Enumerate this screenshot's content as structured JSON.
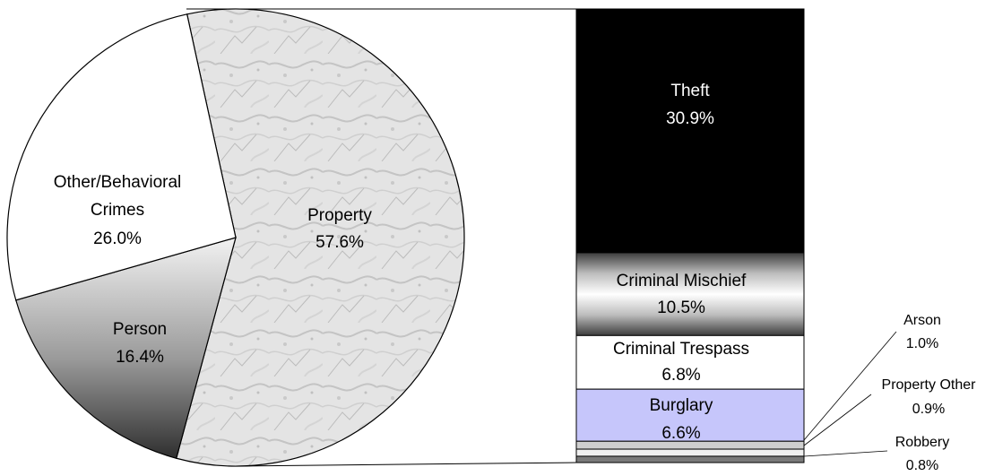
{
  "chart_data": {
    "type": "pie",
    "title": "",
    "colors": {
      "property": "#e6e6e6",
      "person": "#9a9a9a",
      "other": "#ffffff",
      "theft": "#000000",
      "criminal_mischief": "#9c9c9c",
      "criminal_trespass": "#ffffff",
      "burglary": "#c6c6fb",
      "small_segments": "#bdbdbd"
    },
    "slices": [
      {
        "key": "property",
        "name": "Property",
        "value_label": "57.6%",
        "value": 57.6
      },
      {
        "key": "person",
        "name": "Person",
        "value_label": "16.4%",
        "value": 16.4
      },
      {
        "key": "other",
        "name_line1": "Other/Behavioral",
        "name_line2": "Crimes",
        "value_label": "26.0%",
        "value": 26.0
      }
    ],
    "breakdown_of": "Property",
    "breakdown": [
      {
        "key": "theft",
        "name": "Theft",
        "value_label": "30.9%",
        "value": 30.9
      },
      {
        "key": "criminal_mischief",
        "name": "Criminal Mischief",
        "value_label": "10.5%",
        "value": 10.5
      },
      {
        "key": "criminal_trespass",
        "name": "Criminal Trespass",
        "value_label": "6.8%",
        "value": 6.8
      },
      {
        "key": "burglary",
        "name": "Burglary",
        "value_label": "6.6%",
        "value": 6.6
      },
      {
        "key": "arson",
        "name": "Arson",
        "value_label": "1.0%",
        "value": 1.0
      },
      {
        "key": "property_other",
        "name": "Property Other",
        "value_label": "0.9%",
        "value": 0.9
      },
      {
        "key": "robbery",
        "name": "Robbery",
        "value_label": "0.8%",
        "value": 0.8
      }
    ]
  }
}
